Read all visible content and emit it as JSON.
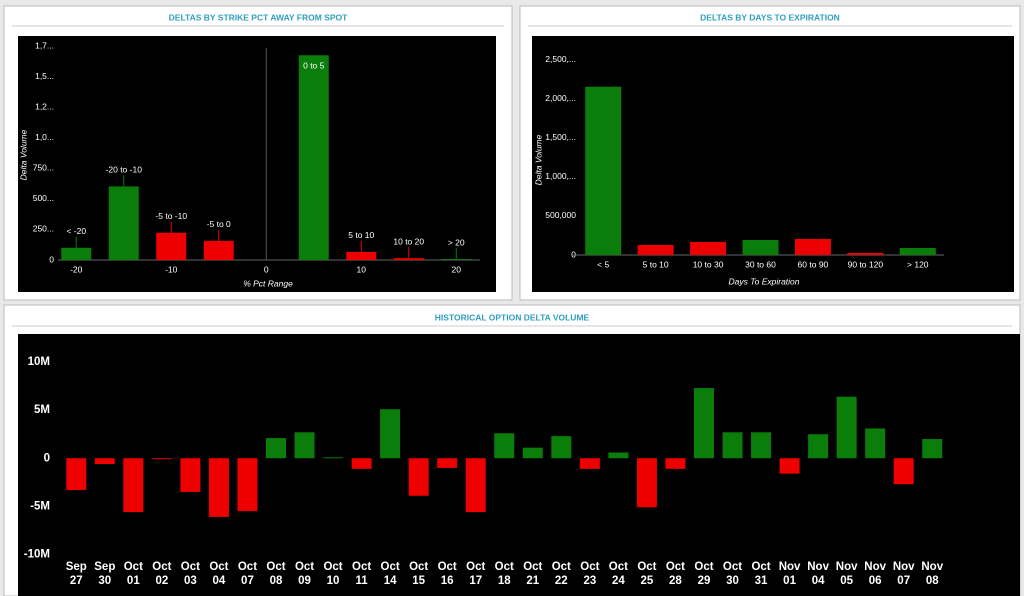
{
  "chart_data": [
    {
      "type": "bar",
      "title": "DELTAS BY STRIKE PCT AWAY FROM SPOT",
      "y_label": "Delta Volume",
      "x_label": "% Pct Range",
      "categories": [
        "< -20",
        "-20 to -10",
        "-5 to -10",
        "-5 to 0",
        "0 to 5",
        "5 to 10",
        "10 to 20",
        "> 20"
      ],
      "x": [
        -20,
        -15,
        -10,
        -5,
        5,
        10,
        15,
        20
      ],
      "values": [
        100,
        602,
        223,
        157,
        1675,
        66,
        15,
        8
      ],
      "colors": [
        "#0a7d0a",
        "#0a7d0a",
        "#ee0000",
        "#ee0000",
        "#0a7d0a",
        "#ee0000",
        "#ee0000",
        "#0a7d0a"
      ],
      "xlim": [
        -21.5,
        22.5
      ],
      "xticks": [
        -20,
        -10,
        0,
        10,
        20
      ],
      "ylim": [
        0,
        1800
      ],
      "yticks": [
        0,
        {
          "value": 250,
          "label": "250..."
        },
        {
          "value": 500,
          "label": "500..."
        },
        {
          "value": 750,
          "label": "750..."
        },
        {
          "value": 1000,
          "label": "1,0..."
        },
        {
          "value": 1250,
          "label": "1,2..."
        },
        {
          "value": 1500,
          "label": "1,5..."
        },
        {
          "value": 1750,
          "label": "1,7..."
        }
      ]
    },
    {
      "type": "bar",
      "title": "DELTAS BY DAYS TO EXPIRATION",
      "y_label": "Delta Volume",
      "x_label": "Days To Expiration",
      "categories": [
        "< 5",
        "5 to 10",
        "10 to 30",
        "30 to 60",
        "60 to 90",
        "90 to 120",
        "> 120"
      ],
      "values": [
        2154000,
        128000,
        167000,
        192000,
        205000,
        26000,
        90000
      ],
      "colors": [
        "#0a7d0a",
        "#ee0000",
        "#ee0000",
        "#0a7d0a",
        "#ee0000",
        "#ee0000",
        "#0a7d0a"
      ],
      "ylim": [
        0,
        2650000
      ],
      "yticks": [
        0,
        {
          "value": 500000,
          "label": "500,000"
        },
        {
          "value": 1000000,
          "label": "1,000,..."
        },
        {
          "value": 1500000,
          "label": "1,500,..."
        },
        {
          "value": 2000000,
          "label": "2,000,..."
        },
        {
          "value": 2500000,
          "label": "2,500,..."
        }
      ]
    },
    {
      "type": "bar",
      "title": "HISTORICAL OPTION DELTA VOLUME",
      "categories": [
        "Sep 27",
        "Sep 30",
        "Oct 01",
        "Oct 02",
        "Oct 03",
        "Oct 04",
        "Oct 07",
        "Oct 08",
        "Oct 09",
        "Oct 10",
        "Oct 11",
        "Oct 14",
        "Oct 15",
        "Oct 16",
        "Oct 17",
        "Oct 18",
        "Oct 21",
        "Oct 22",
        "Oct 23",
        "Oct 24",
        "Oct 25",
        "Oct 28",
        "Oct 29",
        "Oct 30",
        "Oct 31",
        "Nov 01",
        "Nov 04",
        "Nov 05",
        "Nov 06",
        "Nov 07",
        "Nov 08"
      ],
      "values": [
        -3300000,
        -600000,
        -5600000,
        -100000,
        -3500000,
        -6100000,
        -5500000,
        2100000,
        2700000,
        100000,
        -1100000,
        5100000,
        -3900000,
        -1000000,
        -5600000,
        2600000,
        1100000,
        2300000,
        -1100000,
        600000,
        -5100000,
        -1100000,
        7300000,
        2700000,
        2700000,
        -1600000,
        2500000,
        6400000,
        3100000,
        -2700000,
        2000000
      ],
      "positive_color": "#0a7d0a",
      "negative_color": "#ee0000",
      "ylim": [
        -11000000,
        12300000
      ],
      "yticks": [
        {
          "value": -10000000,
          "label": "-10M"
        },
        {
          "value": -5000000,
          "label": "-5M"
        },
        0,
        {
          "value": 5000000,
          "label": "5M"
        },
        {
          "value": 10000000,
          "label": "10M"
        }
      ]
    }
  ]
}
